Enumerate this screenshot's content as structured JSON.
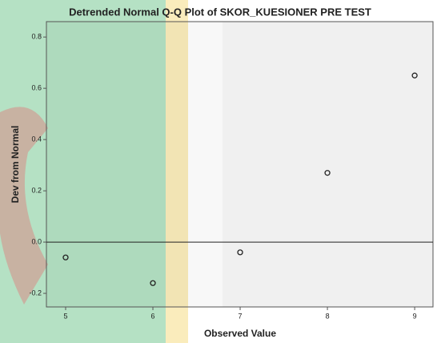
{
  "chart_data": {
    "type": "scatter",
    "title": "Detrended Normal Q-Q Plot of SKOR_KUESIONER PRE TEST",
    "x_label": "Observed Value",
    "y_label": "Dev from Normal",
    "x": [
      5,
      6,
      7,
      8,
      9
    ],
    "values": [
      -0.06,
      -0.16,
      -0.04,
      0.27,
      0.65
    ],
    "color": "#222222",
    "xlim": [
      4.78,
      9.21
    ],
    "ylim": [
      -0.253,
      0.86
    ],
    "xticks": [
      5,
      6,
      7,
      8,
      9
    ],
    "yticks": [
      -0.2,
      {
        "value": 0,
        "label": "0.0"
      },
      0.2,
      0.4,
      0.6,
      0.8
    ],
    "reference_y": 0
  }
}
